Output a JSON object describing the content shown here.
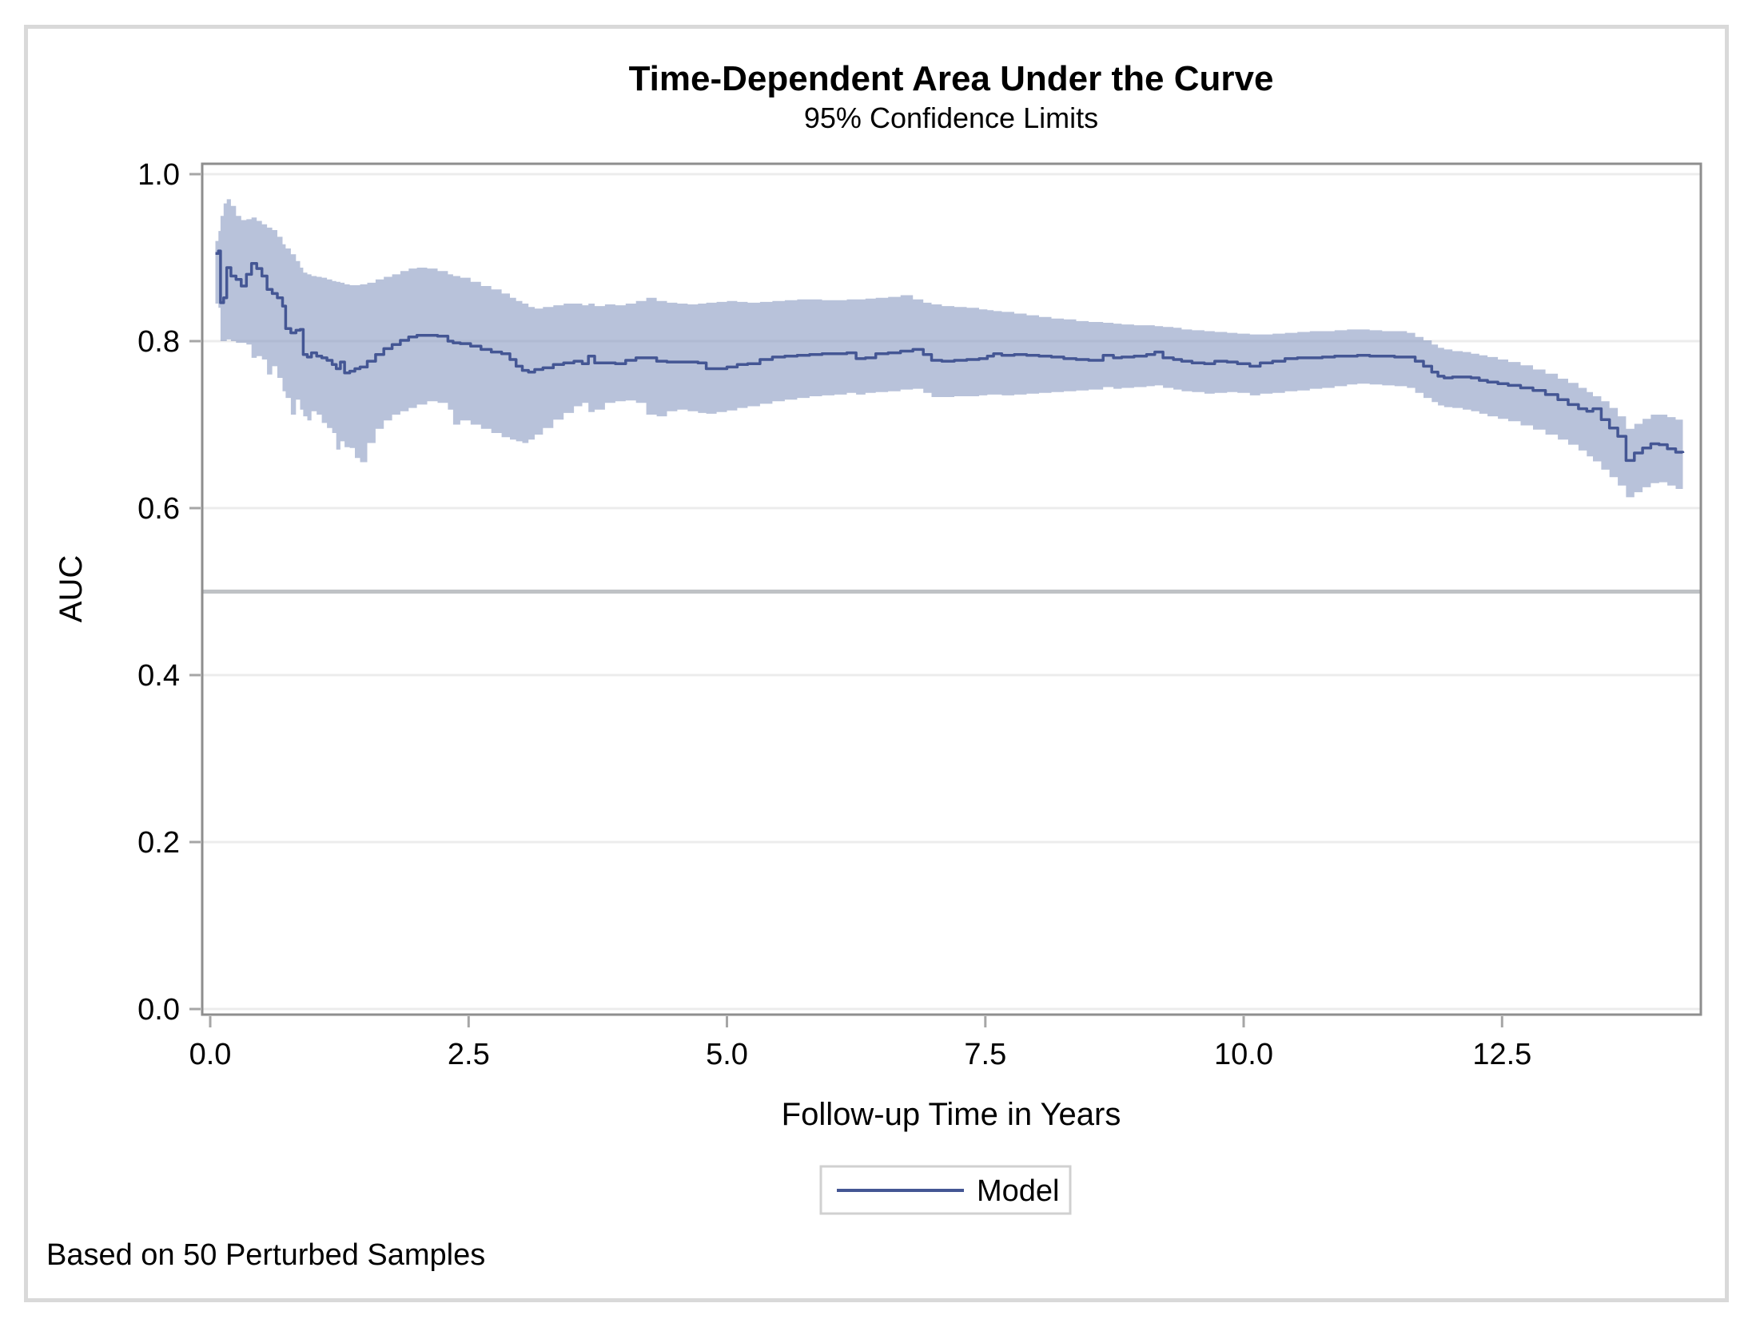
{
  "figure": {
    "title": "Time-Dependent Area Under the Curve",
    "subtitle": "95% Confidence Limits",
    "footnote": "Based on 50 Perturbed Samples",
    "legend": {
      "items": [
        {
          "label": "Model",
          "swatch": "line"
        }
      ]
    }
  },
  "colors": {
    "line": "#445694",
    "band_fill": "#8496c0",
    "band_opacity": 0.58,
    "grid": "#ececec",
    "frame": "#8e8e8e",
    "tick": "#a6a6a6",
    "reference_line": "#bfc2c5",
    "outer_border": "#d9d9d9",
    "legend_border": "#d0d0d0",
    "text": "#000000"
  },
  "chart_data": {
    "type": "line",
    "title": "Time-Dependent Area Under the Curve",
    "subtitle": "95% Confidence Limits",
    "xlabel": "Follow-up Time in Years",
    "ylabel": "AUC",
    "footnote": "Based on 50 Perturbed Samples",
    "grid": true,
    "legend_position": "bottom",
    "reference_line_y": 0.5,
    "xlim": [
      0,
      14.4
    ],
    "ylim": [
      0.0,
      1.0
    ],
    "x_ticks": [
      0.0,
      2.5,
      5.0,
      7.5,
      10.0,
      12.5
    ],
    "x_tick_labels": [
      "0.0",
      "2.5",
      "5.0",
      "7.5",
      "10.0",
      "12.5"
    ],
    "y_ticks": [
      0.0,
      0.2,
      0.4,
      0.6,
      0.8,
      1.0
    ],
    "y_tick_labels": [
      "0.0",
      "0.2",
      "0.4",
      "0.6",
      "0.8",
      "1.0"
    ],
    "series": [
      {
        "name": "Model",
        "point_format": [
          "time_years",
          "lower95",
          "auc",
          "upper95"
        ],
        "interpolation": "step-after",
        "points": [
          [
            0.05,
            0.845,
            0.905,
            0.92
          ],
          [
            0.08,
            0.84,
            0.908,
            0.932
          ],
          [
            0.1,
            0.8,
            0.846,
            0.95
          ],
          [
            0.13,
            0.8,
            0.852,
            0.965
          ],
          [
            0.16,
            0.802,
            0.888,
            0.97
          ],
          [
            0.2,
            0.8,
            0.878,
            0.962
          ],
          [
            0.25,
            0.798,
            0.874,
            0.95
          ],
          [
            0.3,
            0.798,
            0.866,
            0.945
          ],
          [
            0.35,
            0.796,
            0.88,
            0.946
          ],
          [
            0.4,
            0.78,
            0.893,
            0.948
          ],
          [
            0.45,
            0.782,
            0.887,
            0.944
          ],
          [
            0.5,
            0.778,
            0.878,
            0.94
          ],
          [
            0.55,
            0.76,
            0.862,
            0.936
          ],
          [
            0.6,
            0.77,
            0.857,
            0.933
          ],
          [
            0.65,
            0.756,
            0.852,
            0.925
          ],
          [
            0.7,
            0.74,
            0.842,
            0.916
          ],
          [
            0.73,
            0.732,
            0.815,
            0.911
          ],
          [
            0.78,
            0.712,
            0.81,
            0.904
          ],
          [
            0.83,
            0.73,
            0.813,
            0.896
          ],
          [
            0.87,
            0.718,
            0.814,
            0.888
          ],
          [
            0.9,
            0.71,
            0.784,
            0.882
          ],
          [
            0.94,
            0.705,
            0.781,
            0.88
          ],
          [
            0.98,
            0.716,
            0.786,
            0.878
          ],
          [
            1.03,
            0.712,
            0.782,
            0.877
          ],
          [
            1.08,
            0.702,
            0.78,
            0.876
          ],
          [
            1.13,
            0.696,
            0.777,
            0.874
          ],
          [
            1.18,
            0.69,
            0.772,
            0.872
          ],
          [
            1.22,
            0.67,
            0.767,
            0.871
          ],
          [
            1.26,
            0.68,
            0.775,
            0.87
          ],
          [
            1.3,
            0.673,
            0.762,
            0.868
          ],
          [
            1.35,
            0.672,
            0.764,
            0.867
          ],
          [
            1.4,
            0.66,
            0.767,
            0.867
          ],
          [
            1.45,
            0.655,
            0.769,
            0.868
          ],
          [
            1.52,
            0.678,
            0.776,
            0.87
          ],
          [
            1.6,
            0.695,
            0.784,
            0.874
          ],
          [
            1.68,
            0.705,
            0.791,
            0.877
          ],
          [
            1.76,
            0.712,
            0.796,
            0.88
          ],
          [
            1.84,
            0.716,
            0.801,
            0.884
          ],
          [
            1.92,
            0.72,
            0.805,
            0.887
          ],
          [
            2.0,
            0.724,
            0.807,
            0.888
          ],
          [
            2.1,
            0.728,
            0.807,
            0.887
          ],
          [
            2.2,
            0.726,
            0.806,
            0.884
          ],
          [
            2.3,
            0.718,
            0.8,
            0.88
          ],
          [
            2.35,
            0.7,
            0.798,
            0.878
          ],
          [
            2.42,
            0.705,
            0.797,
            0.876
          ],
          [
            2.52,
            0.7,
            0.794,
            0.871
          ],
          [
            2.62,
            0.695,
            0.79,
            0.866
          ],
          [
            2.72,
            0.69,
            0.787,
            0.862
          ],
          [
            2.82,
            0.685,
            0.785,
            0.857
          ],
          [
            2.9,
            0.682,
            0.778,
            0.852
          ],
          [
            2.96,
            0.68,
            0.77,
            0.848
          ],
          [
            3.02,
            0.678,
            0.765,
            0.845
          ],
          [
            3.08,
            0.682,
            0.763,
            0.841
          ],
          [
            3.14,
            0.688,
            0.766,
            0.839
          ],
          [
            3.22,
            0.696,
            0.768,
            0.841
          ],
          [
            3.32,
            0.706,
            0.772,
            0.843
          ],
          [
            3.42,
            0.714,
            0.774,
            0.845
          ],
          [
            3.52,
            0.722,
            0.776,
            0.845
          ],
          [
            3.6,
            0.726,
            0.773,
            0.843
          ],
          [
            3.66,
            0.715,
            0.782,
            0.845
          ],
          [
            3.72,
            0.718,
            0.774,
            0.842
          ],
          [
            3.82,
            0.726,
            0.774,
            0.844
          ],
          [
            3.92,
            0.728,
            0.773,
            0.843
          ],
          [
            4.02,
            0.729,
            0.777,
            0.845
          ],
          [
            4.12,
            0.726,
            0.78,
            0.848
          ],
          [
            4.22,
            0.712,
            0.78,
            0.852
          ],
          [
            4.32,
            0.71,
            0.776,
            0.848
          ],
          [
            4.42,
            0.716,
            0.775,
            0.846
          ],
          [
            4.52,
            0.718,
            0.775,
            0.845
          ],
          [
            4.62,
            0.716,
            0.775,
            0.844
          ],
          [
            4.72,
            0.714,
            0.774,
            0.845
          ],
          [
            4.8,
            0.713,
            0.767,
            0.846
          ],
          [
            4.9,
            0.715,
            0.767,
            0.847
          ],
          [
            5.0,
            0.717,
            0.769,
            0.848
          ],
          [
            5.1,
            0.72,
            0.772,
            0.847
          ],
          [
            5.2,
            0.722,
            0.773,
            0.846
          ],
          [
            5.32,
            0.725,
            0.778,
            0.847
          ],
          [
            5.44,
            0.728,
            0.781,
            0.848
          ],
          [
            5.56,
            0.73,
            0.782,
            0.849
          ],
          [
            5.68,
            0.732,
            0.783,
            0.85
          ],
          [
            5.8,
            0.734,
            0.784,
            0.85
          ],
          [
            5.92,
            0.735,
            0.785,
            0.849
          ],
          [
            6.04,
            0.736,
            0.785,
            0.849
          ],
          [
            6.16,
            0.738,
            0.786,
            0.85
          ],
          [
            6.25,
            0.736,
            0.779,
            0.85
          ],
          [
            6.34,
            0.738,
            0.78,
            0.851
          ],
          [
            6.44,
            0.739,
            0.785,
            0.852
          ],
          [
            6.56,
            0.74,
            0.786,
            0.853
          ],
          [
            6.68,
            0.742,
            0.788,
            0.855
          ],
          [
            6.8,
            0.743,
            0.79,
            0.85
          ],
          [
            6.9,
            0.738,
            0.784,
            0.846
          ],
          [
            6.98,
            0.733,
            0.777,
            0.844
          ],
          [
            7.08,
            0.733,
            0.776,
            0.842
          ],
          [
            7.2,
            0.734,
            0.777,
            0.841
          ],
          [
            7.32,
            0.734,
            0.778,
            0.84
          ],
          [
            7.44,
            0.735,
            0.779,
            0.838
          ],
          [
            7.52,
            0.736,
            0.782,
            0.837
          ],
          [
            7.58,
            0.736,
            0.785,
            0.836
          ],
          [
            7.66,
            0.735,
            0.783,
            0.835
          ],
          [
            7.78,
            0.736,
            0.784,
            0.833
          ],
          [
            7.9,
            0.737,
            0.783,
            0.831
          ],
          [
            8.02,
            0.738,
            0.782,
            0.829
          ],
          [
            8.14,
            0.739,
            0.781,
            0.827
          ],
          [
            8.26,
            0.74,
            0.779,
            0.826
          ],
          [
            8.38,
            0.741,
            0.778,
            0.824
          ],
          [
            8.5,
            0.742,
            0.777,
            0.823
          ],
          [
            8.64,
            0.745,
            0.783,
            0.822
          ],
          [
            8.74,
            0.743,
            0.78,
            0.821
          ],
          [
            8.82,
            0.744,
            0.781,
            0.82
          ],
          [
            8.94,
            0.745,
            0.782,
            0.819
          ],
          [
            9.06,
            0.746,
            0.784,
            0.819
          ],
          [
            9.14,
            0.747,
            0.787,
            0.818
          ],
          [
            9.22,
            0.744,
            0.78,
            0.817
          ],
          [
            9.32,
            0.742,
            0.778,
            0.816
          ],
          [
            9.4,
            0.74,
            0.776,
            0.814
          ],
          [
            9.5,
            0.739,
            0.774,
            0.813
          ],
          [
            9.62,
            0.737,
            0.773,
            0.812
          ],
          [
            9.72,
            0.738,
            0.776,
            0.811
          ],
          [
            9.84,
            0.739,
            0.775,
            0.81
          ],
          [
            9.94,
            0.738,
            0.773,
            0.809
          ],
          [
            10.06,
            0.735,
            0.77,
            0.808
          ],
          [
            10.16,
            0.737,
            0.774,
            0.808
          ],
          [
            10.28,
            0.738,
            0.776,
            0.809
          ],
          [
            10.4,
            0.74,
            0.779,
            0.81
          ],
          [
            10.52,
            0.741,
            0.78,
            0.811
          ],
          [
            10.64,
            0.743,
            0.78,
            0.812
          ],
          [
            10.76,
            0.744,
            0.781,
            0.812
          ],
          [
            10.88,
            0.746,
            0.782,
            0.813
          ],
          [
            11.0,
            0.748,
            0.782,
            0.814
          ],
          [
            11.1,
            0.749,
            0.783,
            0.814
          ],
          [
            11.22,
            0.748,
            0.782,
            0.813
          ],
          [
            11.34,
            0.747,
            0.782,
            0.812
          ],
          [
            11.46,
            0.746,
            0.781,
            0.812
          ],
          [
            11.58,
            0.744,
            0.781,
            0.81
          ],
          [
            11.66,
            0.738,
            0.776,
            0.805
          ],
          [
            11.74,
            0.732,
            0.77,
            0.801
          ],
          [
            11.82,
            0.727,
            0.763,
            0.796
          ],
          [
            11.88,
            0.723,
            0.758,
            0.792
          ],
          [
            11.94,
            0.721,
            0.756,
            0.79
          ],
          [
            12.02,
            0.72,
            0.757,
            0.788
          ],
          [
            12.12,
            0.718,
            0.757,
            0.787
          ],
          [
            12.2,
            0.716,
            0.756,
            0.785
          ],
          [
            12.28,
            0.713,
            0.753,
            0.783
          ],
          [
            12.36,
            0.71,
            0.751,
            0.781
          ],
          [
            12.46,
            0.707,
            0.749,
            0.778
          ],
          [
            12.56,
            0.704,
            0.747,
            0.775
          ],
          [
            12.68,
            0.699,
            0.744,
            0.771
          ],
          [
            12.8,
            0.694,
            0.741,
            0.766
          ],
          [
            12.92,
            0.688,
            0.736,
            0.761
          ],
          [
            13.04,
            0.682,
            0.73,
            0.755
          ],
          [
            13.14,
            0.676,
            0.724,
            0.75
          ],
          [
            13.24,
            0.669,
            0.719,
            0.744
          ],
          [
            13.32,
            0.662,
            0.716,
            0.739
          ],
          [
            13.38,
            0.656,
            0.719,
            0.734
          ],
          [
            13.46,
            0.646,
            0.706,
            0.728
          ],
          [
            13.54,
            0.637,
            0.696,
            0.72
          ],
          [
            13.62,
            0.627,
            0.686,
            0.71
          ],
          [
            13.7,
            0.613,
            0.657,
            0.695
          ],
          [
            13.78,
            0.619,
            0.666,
            0.701
          ],
          [
            13.86,
            0.625,
            0.672,
            0.707
          ],
          [
            13.94,
            0.63,
            0.677,
            0.712
          ],
          [
            14.02,
            0.631,
            0.676,
            0.712
          ],
          [
            14.1,
            0.627,
            0.671,
            0.709
          ],
          [
            14.18,
            0.623,
            0.667,
            0.706
          ],
          [
            14.25,
            0.629,
            0.666,
            0.71
          ]
        ]
      }
    ]
  }
}
